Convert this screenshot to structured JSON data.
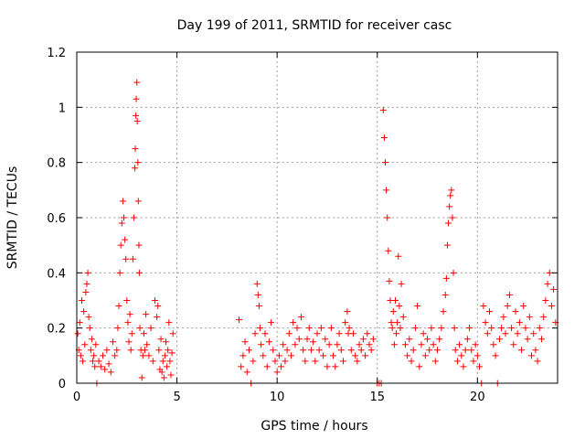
{
  "chart_data": {
    "type": "scatter",
    "title": "Day 199 of 2011, SRMTID for receiver casc",
    "xlabel": "GPS time / hours",
    "ylabel": "SRMTID / TECUs",
    "xlim": [
      0,
      24
    ],
    "ylim": [
      0,
      1.2
    ],
    "xticks": [
      0,
      5,
      10,
      15,
      20
    ],
    "xtick_labels": [
      "0",
      "5",
      "10",
      "15",
      "20"
    ],
    "yticks": [
      0,
      0.2,
      0.4,
      0.6,
      0.8,
      1.0,
      1.2
    ],
    "ytick_labels": [
      "0",
      "0.2",
      "0.4",
      "0.6",
      "0.8",
      "1",
      "1.2"
    ],
    "grid": true,
    "marker": "+",
    "color": "#ff0000",
    "series": [
      {
        "name": "SRMTID",
        "points": [
          [
            0.05,
            0.18
          ],
          [
            0.1,
            0.12
          ],
          [
            0.15,
            0.22
          ],
          [
            0.2,
            0.1
          ],
          [
            0.25,
            0.3
          ],
          [
            0.3,
            0.08
          ],
          [
            0.35,
            0.26
          ],
          [
            0.4,
            0.14
          ],
          [
            0.45,
            0.33
          ],
          [
            0.5,
            0.36
          ],
          [
            0.55,
            0.4
          ],
          [
            0.6,
            0.24
          ],
          [
            0.65,
            0.2
          ],
          [
            0.7,
            0.12
          ],
          [
            0.75,
            0.16
          ],
          [
            0.8,
            0.08
          ],
          [
            0.85,
            0.1
          ],
          [
            0.9,
            0.06
          ],
          [
            0.95,
            0.14
          ],
          [
            1.0,
            0.0
          ],
          [
            1.1,
            0.08
          ],
          [
            1.2,
            0.06
          ],
          [
            1.3,
            0.1
          ],
          [
            1.4,
            0.05
          ],
          [
            1.5,
            0.12
          ],
          [
            1.6,
            0.07
          ],
          [
            1.7,
            0.04
          ],
          [
            1.8,
            0.15
          ],
          [
            1.9,
            0.1
          ],
          [
            2.0,
            0.12
          ],
          [
            2.05,
            0.2
          ],
          [
            2.1,
            0.28
          ],
          [
            2.15,
            0.4
          ],
          [
            2.2,
            0.5
          ],
          [
            2.25,
            0.58
          ],
          [
            2.3,
            0.66
          ],
          [
            2.35,
            0.6
          ],
          [
            2.4,
            0.52
          ],
          [
            2.45,
            0.45
          ],
          [
            2.5,
            0.3
          ],
          [
            2.55,
            0.22
          ],
          [
            2.6,
            0.15
          ],
          [
            2.65,
            0.25
          ],
          [
            2.7,
            0.12
          ],
          [
            2.75,
            0.18
          ],
          [
            2.8,
            0.45
          ],
          [
            2.85,
            0.6
          ],
          [
            2.9,
            0.78
          ],
          [
            2.92,
            0.85
          ],
          [
            2.95,
            0.97
          ],
          [
            2.97,
            1.03
          ],
          [
            3.0,
            1.09
          ],
          [
            3.02,
            0.95
          ],
          [
            3.05,
            0.8
          ],
          [
            3.07,
            0.66
          ],
          [
            3.1,
            0.5
          ],
          [
            3.12,
            0.4
          ],
          [
            3.15,
            0.2
          ],
          [
            3.2,
            0.12
          ],
          [
            3.25,
            0.02
          ],
          [
            3.3,
            0.1
          ],
          [
            3.35,
            0.18
          ],
          [
            3.4,
            0.12
          ],
          [
            3.45,
            0.25
          ],
          [
            3.5,
            0.14
          ],
          [
            3.6,
            0.1
          ],
          [
            3.7,
            0.2
          ],
          [
            3.8,
            0.08
          ],
          [
            3.9,
            0.3
          ],
          [
            4.0,
            0.24
          ],
          [
            4.05,
            0.28
          ],
          [
            4.1,
            0.12
          ],
          [
            4.15,
            0.05
          ],
          [
            4.2,
            0.16
          ],
          [
            4.25,
            0.04
          ],
          [
            4.3,
            0.08
          ],
          [
            4.35,
            0.02
          ],
          [
            4.4,
            0.1
          ],
          [
            4.45,
            0.15
          ],
          [
            4.5,
            0.06
          ],
          [
            4.55,
            0.12
          ],
          [
            4.6,
            0.22
          ],
          [
            4.65,
            0.08
          ],
          [
            4.7,
            0.03
          ],
          [
            4.75,
            0.11
          ],
          [
            4.8,
            0.18
          ],
          [
            8.1,
            0.23
          ],
          [
            8.2,
            0.06
          ],
          [
            8.3,
            0.1
          ],
          [
            8.4,
            0.15
          ],
          [
            8.5,
            0.04
          ],
          [
            8.6,
            0.12
          ],
          [
            8.7,
            0.0
          ],
          [
            8.8,
            0.08
          ],
          [
            8.9,
            0.18
          ],
          [
            9.0,
            0.36
          ],
          [
            9.05,
            0.32
          ],
          [
            9.1,
            0.28
          ],
          [
            9.15,
            0.2
          ],
          [
            9.2,
            0.14
          ],
          [
            9.3,
            0.1
          ],
          [
            9.4,
            0.18
          ],
          [
            9.5,
            0.06
          ],
          [
            9.6,
            0.15
          ],
          [
            9.7,
            0.22
          ],
          [
            9.8,
            0.12
          ],
          [
            9.9,
            0.08
          ],
          [
            10.0,
            0.04
          ],
          [
            10.1,
            0.1
          ],
          [
            10.2,
            0.06
          ],
          [
            10.3,
            0.14
          ],
          [
            10.4,
            0.08
          ],
          [
            10.5,
            0.12
          ],
          [
            10.6,
            0.18
          ],
          [
            10.7,
            0.1
          ],
          [
            10.8,
            0.22
          ],
          [
            10.9,
            0.14
          ],
          [
            11.0,
            0.2
          ],
          [
            11.1,
            0.16
          ],
          [
            11.2,
            0.24
          ],
          [
            11.3,
            0.12
          ],
          [
            11.4,
            0.08
          ],
          [
            11.5,
            0.16
          ],
          [
            11.6,
            0.2
          ],
          [
            11.7,
            0.12
          ],
          [
            11.8,
            0.15
          ],
          [
            11.9,
            0.08
          ],
          [
            12.0,
            0.18
          ],
          [
            12.1,
            0.12
          ],
          [
            12.2,
            0.2
          ],
          [
            12.3,
            0.1
          ],
          [
            12.4,
            0.16
          ],
          [
            12.5,
            0.06
          ],
          [
            12.6,
            0.14
          ],
          [
            12.7,
            0.2
          ],
          [
            12.8,
            0.1
          ],
          [
            12.9,
            0.06
          ],
          [
            13.0,
            0.14
          ],
          [
            13.1,
            0.18
          ],
          [
            13.2,
            0.12
          ],
          [
            13.3,
            0.08
          ],
          [
            13.4,
            0.22
          ],
          [
            13.5,
            0.26
          ],
          [
            13.55,
            0.18
          ],
          [
            13.6,
            0.2
          ],
          [
            13.7,
            0.12
          ],
          [
            13.8,
            0.18
          ],
          [
            13.9,
            0.1
          ],
          [
            14.0,
            0.08
          ],
          [
            14.1,
            0.14
          ],
          [
            14.2,
            0.12
          ],
          [
            14.3,
            0.16
          ],
          [
            14.4,
            0.1
          ],
          [
            14.5,
            0.18
          ],
          [
            14.6,
            0.14
          ],
          [
            14.7,
            0.12
          ],
          [
            14.8,
            0.16
          ],
          [
            15.0,
            0.0
          ],
          [
            15.1,
            0.0
          ],
          [
            15.2,
            0.0
          ],
          [
            15.3,
            0.99
          ],
          [
            15.35,
            0.89
          ],
          [
            15.4,
            0.8
          ],
          [
            15.45,
            0.7
          ],
          [
            15.5,
            0.6
          ],
          [
            15.55,
            0.48
          ],
          [
            15.6,
            0.37
          ],
          [
            15.65,
            0.3
          ],
          [
            15.7,
            0.22
          ],
          [
            15.75,
            0.2
          ],
          [
            15.8,
            0.26
          ],
          [
            15.85,
            0.14
          ],
          [
            15.9,
            0.3
          ],
          [
            15.95,
            0.18
          ],
          [
            16.0,
            0.22
          ],
          [
            16.05,
            0.46
          ],
          [
            16.1,
            0.28
          ],
          [
            16.15,
            0.2
          ],
          [
            16.2,
            0.36
          ],
          [
            16.3,
            0.24
          ],
          [
            16.4,
            0.14
          ],
          [
            16.5,
            0.1
          ],
          [
            16.6,
            0.16
          ],
          [
            16.7,
            0.08
          ],
          [
            16.8,
            0.12
          ],
          [
            16.9,
            0.2
          ],
          [
            17.0,
            0.28
          ],
          [
            17.1,
            0.06
          ],
          [
            17.2,
            0.14
          ],
          [
            17.3,
            0.18
          ],
          [
            17.4,
            0.1
          ],
          [
            17.5,
            0.16
          ],
          [
            17.6,
            0.12
          ],
          [
            17.7,
            0.2
          ],
          [
            17.8,
            0.14
          ],
          [
            17.9,
            0.08
          ],
          [
            18.0,
            0.12
          ],
          [
            18.1,
            0.16
          ],
          [
            18.2,
            0.2
          ],
          [
            18.3,
            0.26
          ],
          [
            18.4,
            0.32
          ],
          [
            18.45,
            0.38
          ],
          [
            18.5,
            0.5
          ],
          [
            18.55,
            0.58
          ],
          [
            18.6,
            0.64
          ],
          [
            18.65,
            0.68
          ],
          [
            18.7,
            0.7
          ],
          [
            18.75,
            0.6
          ],
          [
            18.8,
            0.4
          ],
          [
            18.85,
            0.2
          ],
          [
            18.9,
            0.12
          ],
          [
            19.0,
            0.08
          ],
          [
            19.1,
            0.14
          ],
          [
            19.2,
            0.1
          ],
          [
            19.3,
            0.06
          ],
          [
            19.4,
            0.12
          ],
          [
            19.5,
            0.16
          ],
          [
            19.6,
            0.2
          ],
          [
            19.7,
            0.12
          ],
          [
            19.8,
            0.08
          ],
          [
            19.9,
            0.14
          ],
          [
            20.0,
            0.1
          ],
          [
            20.1,
            0.06
          ],
          [
            20.2,
            0.0
          ],
          [
            20.3,
            0.28
          ],
          [
            20.4,
            0.22
          ],
          [
            20.5,
            0.18
          ],
          [
            20.6,
            0.26
          ],
          [
            20.7,
            0.2
          ],
          [
            20.8,
            0.14
          ],
          [
            20.9,
            0.1
          ],
          [
            21.0,
            0.0
          ],
          [
            21.1,
            0.16
          ],
          [
            21.2,
            0.2
          ],
          [
            21.3,
            0.24
          ],
          [
            21.4,
            0.18
          ],
          [
            21.5,
            0.28
          ],
          [
            21.6,
            0.32
          ],
          [
            21.7,
            0.2
          ],
          [
            21.8,
            0.14
          ],
          [
            21.9,
            0.26
          ],
          [
            22.0,
            0.18
          ],
          [
            22.1,
            0.22
          ],
          [
            22.2,
            0.12
          ],
          [
            22.3,
            0.28
          ],
          [
            22.4,
            0.2
          ],
          [
            22.5,
            0.16
          ],
          [
            22.6,
            0.24
          ],
          [
            22.7,
            0.1
          ],
          [
            22.8,
            0.18
          ],
          [
            22.9,
            0.12
          ],
          [
            23.0,
            0.08
          ],
          [
            23.1,
            0.2
          ],
          [
            23.2,
            0.16
          ],
          [
            23.3,
            0.24
          ],
          [
            23.4,
            0.3
          ],
          [
            23.5,
            0.36
          ],
          [
            23.6,
            0.4
          ],
          [
            23.7,
            0.28
          ],
          [
            23.8,
            0.34
          ],
          [
            23.9,
            0.22
          ]
        ]
      }
    ]
  }
}
